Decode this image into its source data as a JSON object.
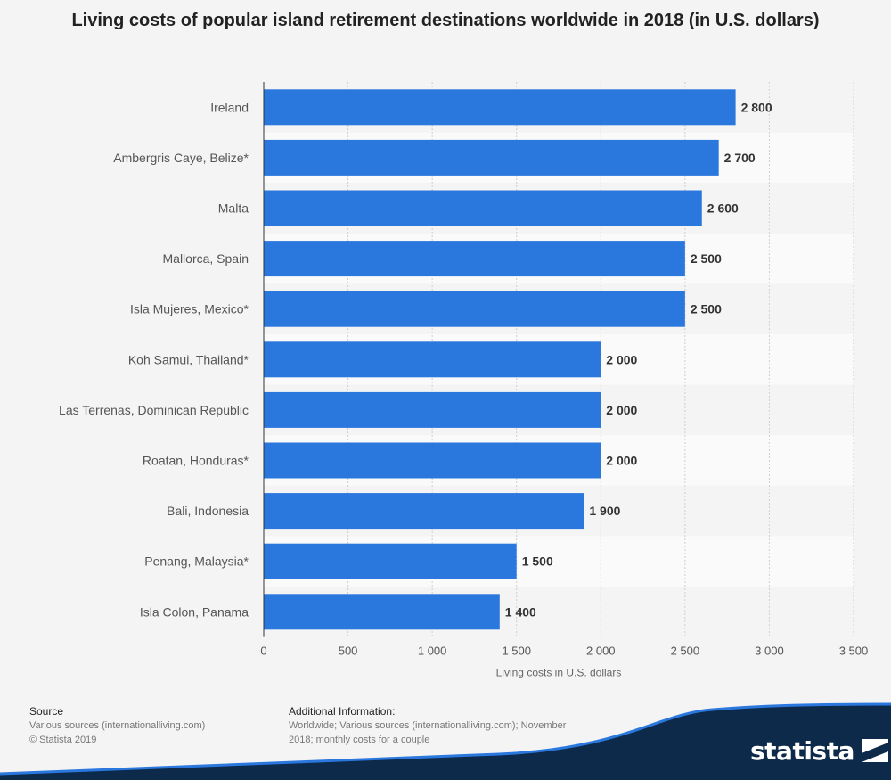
{
  "chart_data": {
    "type": "bar",
    "orientation": "horizontal",
    "title": "Living costs of popular island retirement destinations worldwide in 2018 (in U.S. dollars)",
    "xlabel": "Living costs in U.S. dollars",
    "ylabel": "",
    "xlim": [
      0,
      3500
    ],
    "xticks": [
      0,
      500,
      1000,
      1500,
      2000,
      2500,
      3000,
      3500
    ],
    "tick_labels": [
      "0",
      "500",
      "1 000",
      "1 500",
      "2 000",
      "2 500",
      "3 000",
      "3 500"
    ],
    "grid": true,
    "categories": [
      "Ireland",
      "Ambergris Caye, Belize*",
      "Malta",
      "Mallorca, Spain",
      "Isla Mujeres, Mexico*",
      "Koh Samui, Thailand*",
      "Las Terrenas, Dominican Republic",
      "Roatan, Honduras*",
      "Bali, Indonesia",
      "Penang, Malaysia*",
      "Isla Colon, Panama"
    ],
    "values": [
      2800,
      2700,
      2600,
      2500,
      2500,
      2000,
      2000,
      2000,
      1900,
      1500,
      1400
    ],
    "value_labels": [
      "2 800",
      "2 700",
      "2 600",
      "2 500",
      "2 500",
      "2 000",
      "2 000",
      "2 000",
      "1 900",
      "1 500",
      "1 400"
    ],
    "bar_color": "#2a77dd"
  },
  "footer": {
    "source_heading": "Source",
    "source_lines": [
      "Various sources (internationalliving.com)",
      "© Statista 2019"
    ],
    "info_heading": "Additional Information:",
    "info_lines": [
      "Worldwide; Various sources (internationalliving.com); November",
      "2018; monthly costs for a couple"
    ]
  },
  "brand": {
    "name": "statista",
    "color": "#0d2a4a"
  }
}
